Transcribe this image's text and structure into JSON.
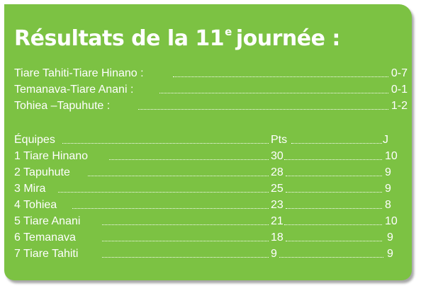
{
  "title": {
    "prefix": "Résultats de la 11",
    "sup": "e",
    "suffix": "journée :"
  },
  "matches": [
    {
      "teams": "Tiare Tahiti-Tiare Hinano :",
      "score": "0-7"
    },
    {
      "teams": "Temanava-Tiare Anani :",
      "score": "0-1"
    },
    {
      "teams": "Tohiea –Tapuhute :",
      "score": "1-2"
    }
  ],
  "standings_header": {
    "team": "Équipes",
    "pts": "Pts",
    "games": "J"
  },
  "standings": [
    {
      "rank_team": "1 Tiare Hinano",
      "pts": "30",
      "games": "10"
    },
    {
      "rank_team": "2 Tapuhute",
      "pts": "28",
      "games": "9"
    },
    {
      "rank_team": "3 Mira",
      "pts": "25",
      "games": "9"
    },
    {
      "rank_team": "4 Tohiea",
      "pts": "23",
      "games": "8"
    },
    {
      "rank_team": "5 Tiare Anani",
      "pts": "21",
      "games": "10"
    },
    {
      "rank_team": "6 Temanava",
      "pts": "18",
      "games": "9"
    },
    {
      "rank_team": "7 Tiare Tahiti",
      "pts": "9",
      "games": "9"
    }
  ]
}
